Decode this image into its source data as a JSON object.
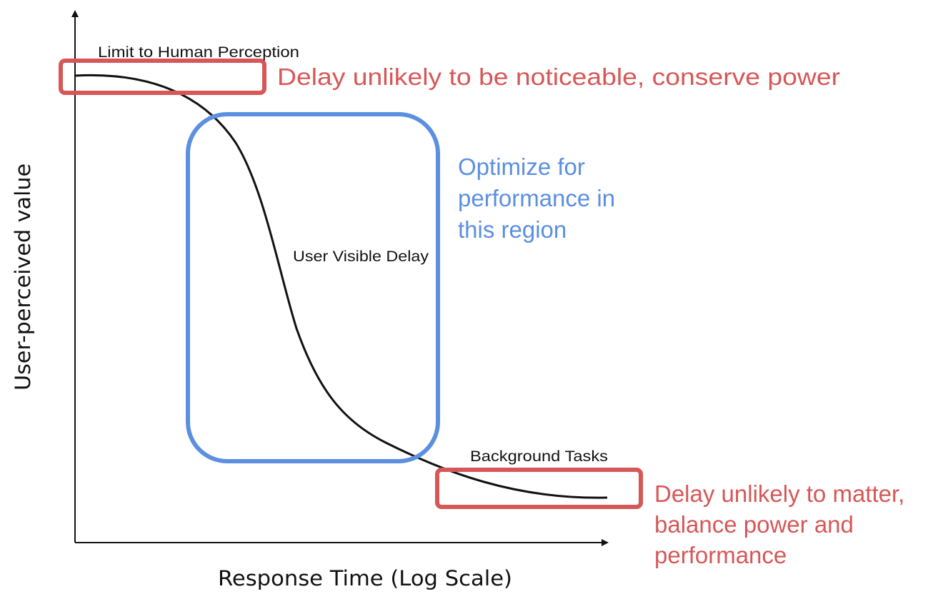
{
  "axes": {
    "x_label": "Response Time (Log Scale)",
    "y_label": "User-perceived value"
  },
  "labels": {
    "limit_perception": "Limit to Human Perception",
    "user_visible_delay": "User Visible Delay",
    "background_tasks": "Background Tasks"
  },
  "annotations": {
    "top_note": "Delay unlikely to be noticeable, conserve power",
    "middle_note": [
      "Optimize for",
      "performance in",
      "this region"
    ],
    "bottom_note": [
      "Delay unlikely to matter,",
      "balance power and",
      "performance"
    ]
  },
  "colors": {
    "red": "#d75757",
    "blue": "#5b8fe0",
    "black": "#111111"
  }
}
